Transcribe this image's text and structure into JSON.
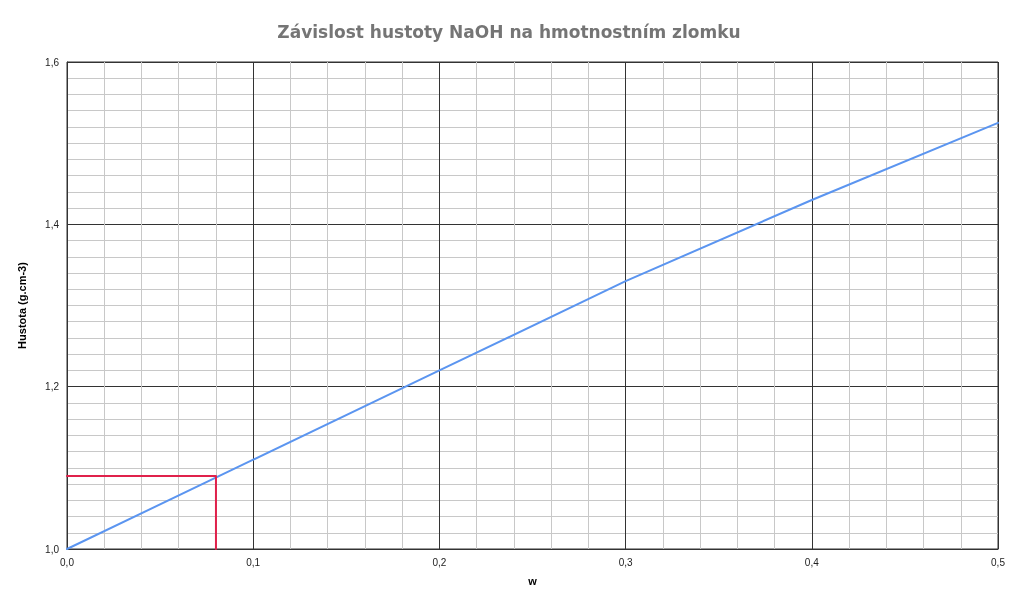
{
  "chart_data": {
    "type": "line",
    "title": "Závislost hustoty NaOH na hmotnostním zlomku",
    "xlabel": "w",
    "ylabel": "Hustota (g.cm-3)",
    "series": [
      {
        "color": "#5b95f0",
        "x": [
          0,
          0.1,
          0.2,
          0.3,
          0.4,
          0.5
        ],
        "values": [
          1.0,
          1.11,
          1.22,
          1.33,
          1.43,
          1.525
        ]
      },
      {
        "color": "#e0214b",
        "x": [
          0,
          0.08,
          0.08
        ],
        "values": [
          1.09,
          1.09,
          1.0
        ]
      }
    ],
    "xlim": [
      0,
      0.5
    ],
    "xticks": [
      {
        "value": 0,
        "label": "0,0"
      },
      {
        "value": 0.1,
        "label": "0,1"
      },
      {
        "value": 0.2,
        "label": "0,2"
      },
      {
        "value": 0.3,
        "label": "0,3"
      },
      {
        "value": 0.4,
        "label": "0,4"
      },
      {
        "value": 0.5,
        "label": "0,5"
      }
    ],
    "ylim": [
      1.0,
      1.6
    ],
    "yticks": [
      {
        "value": 1.0,
        "label": "1,0"
      },
      {
        "value": 1.2,
        "label": "1,2"
      },
      {
        "value": 1.4,
        "label": "1,4"
      },
      {
        "value": 1.6,
        "label": "1,6"
      }
    ],
    "grid": true,
    "marker": "none",
    "line_style": "solid"
  }
}
